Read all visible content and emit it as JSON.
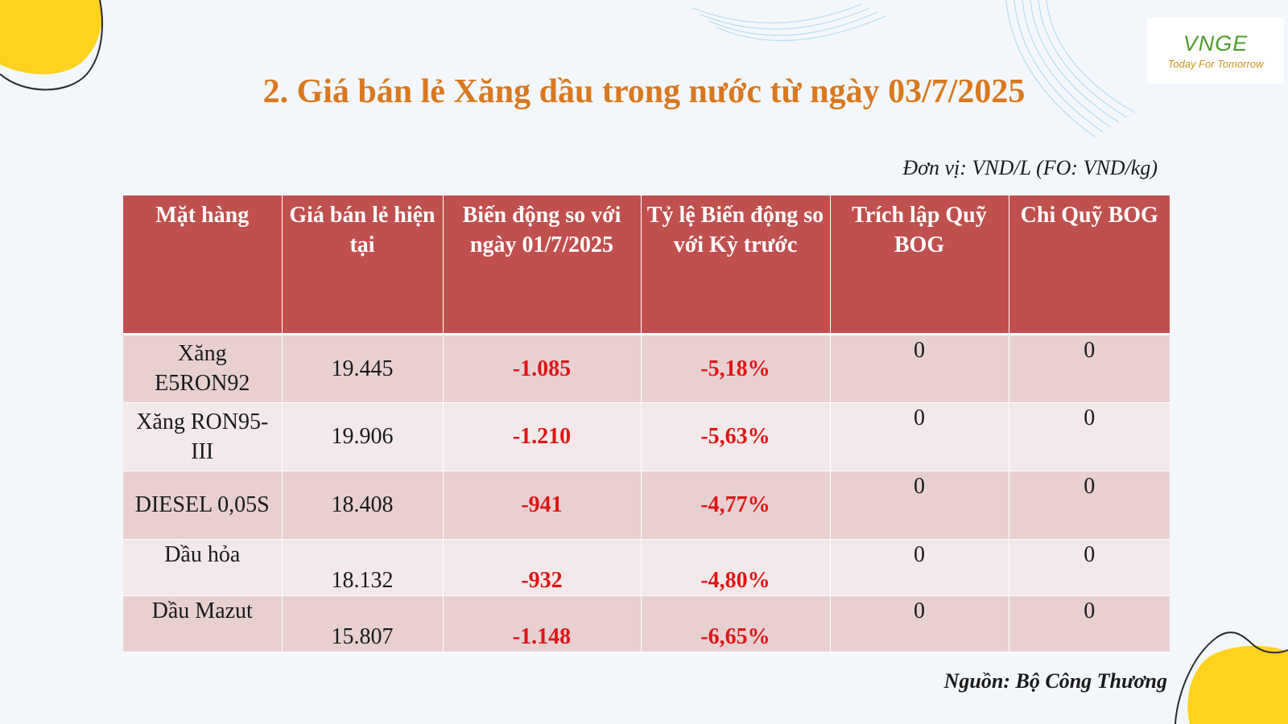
{
  "logo": {
    "mark": "VNGE",
    "tagline": "Today For Tomorrow"
  },
  "title": "2. Giá bán lẻ Xăng dầu trong nước từ ngày 03/7/2025",
  "unit": "Đơn vị: VND/L (FO: VND/kg)",
  "table": {
    "headers": [
      "Mặt hàng",
      "Giá bán lẻ hiện tại",
      "Biến động so với ngày 01/7/2025",
      "Tỷ lệ Biến động so với Kỳ trước",
      "Trích lập Quỹ BOG",
      "Chi Quỹ BOG"
    ],
    "rows": [
      {
        "product": "Xăng E5RON92",
        "price": "19.445",
        "change": "-1.085",
        "change_pct": "-5,18%",
        "bog_fund": "0",
        "bog_spend": "0"
      },
      {
        "product": "Xăng RON95-III",
        "price": "19.906",
        "change": "-1.210",
        "change_pct": "-5,63%",
        "bog_fund": "0",
        "bog_spend": "0"
      },
      {
        "product": "DIESEL 0,05S",
        "price": "18.408",
        "change": "-941",
        "change_pct": "-4,77%",
        "bog_fund": "0",
        "bog_spend": "0"
      },
      {
        "product": "Dầu hỏa",
        "price": "18.132",
        "change": "-932",
        "change_pct": "-4,80%",
        "bog_fund": "0",
        "bog_spend": "0"
      },
      {
        "product": "Dầu Mazut",
        "price": "15.807",
        "change": "-1.148",
        "change_pct": "-6,65%",
        "bog_fund": "0",
        "bog_spend": "0"
      }
    ]
  },
  "source": "Nguồn: Bộ Công Thương",
  "colors": {
    "title": "#d9781f",
    "header_bg": "#c0504d",
    "negative": "#e01414",
    "accent_yellow": "#ffd21f",
    "logo_green": "#4f9b2f"
  }
}
